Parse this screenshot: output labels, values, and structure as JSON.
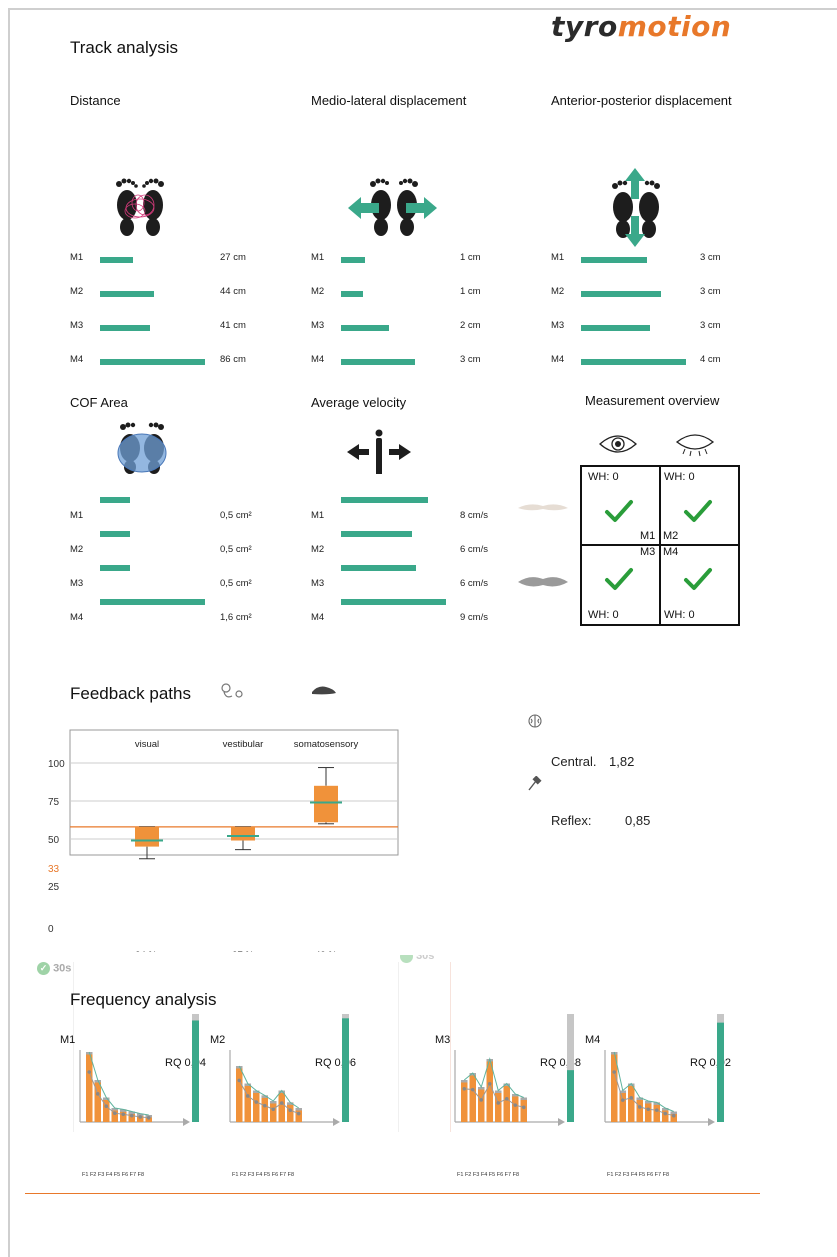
{
  "brand": {
    "part1": "tyro",
    "part2": "motion",
    "accent": "#e8782a",
    "teal": "#3aa88a"
  },
  "title": "Track analysis",
  "metrics": {
    "distance": {
      "title": "Distance",
      "rows": [
        {
          "label": "M1",
          "value": "27 cm",
          "fraction": 0.31
        },
        {
          "label": "M2",
          "value": "44 cm",
          "fraction": 0.51
        },
        {
          "label": "M3",
          "value": "41 cm",
          "fraction": 0.48
        },
        {
          "label": "M4",
          "value": "86 cm",
          "fraction": 1.0
        }
      ]
    },
    "ml": {
      "title": "Medio-lateral displacement",
      "rows": [
        {
          "label": "M1",
          "value": "1 cm",
          "fraction": 0.33
        },
        {
          "label": "M2",
          "value": "1 cm",
          "fraction": 0.3
        },
        {
          "label": "M3",
          "value": "2 cm",
          "fraction": 0.65
        },
        {
          "label": "M4",
          "value": "3 cm",
          "fraction": 1.0
        }
      ]
    },
    "ap": {
      "title": "Anterior-posterior displacement",
      "rows": [
        {
          "label": "M1",
          "value": "3 cm",
          "fraction": 0.63
        },
        {
          "label": "M2",
          "value": "3 cm",
          "fraction": 0.76
        },
        {
          "label": "M3",
          "value": "3 cm",
          "fraction": 0.66
        },
        {
          "label": "M4",
          "value": "4 cm",
          "fraction": 1.0
        }
      ]
    },
    "cof": {
      "title": "COF Area",
      "rows": [
        {
          "label": "M1",
          "value": "0,5 cm²",
          "fraction": 0.29
        },
        {
          "label": "M2",
          "value": "0,5 cm²",
          "fraction": 0.29
        },
        {
          "label": "M3",
          "value": "0,5 cm²",
          "fraction": 0.29
        },
        {
          "label": "M4",
          "value": "1,6 cm²",
          "fraction": 1.0
        }
      ]
    },
    "vel": {
      "title": "Average velocity",
      "rows": [
        {
          "label": "M1",
          "value": "8 cm/s",
          "fraction": 0.83
        },
        {
          "label": "M2",
          "value": "6 cm/s",
          "fraction": 0.68
        },
        {
          "label": "M3",
          "value": "6 cm/s",
          "fraction": 0.71
        },
        {
          "label": "M4",
          "value": "9 cm/s",
          "fraction": 1.0
        }
      ]
    }
  },
  "overview": {
    "title": "Measurement overview",
    "cells": [
      {
        "m": "M1",
        "wh": "WH: 0"
      },
      {
        "m": "M2",
        "wh": "WH: 0"
      },
      {
        "m": "M3",
        "wh": "WH: 0"
      },
      {
        "m": "M4",
        "wh": "WH: 0"
      }
    ]
  },
  "feedback": {
    "title": "Feedback paths",
    "categories": [
      "visual",
      "vestibular",
      "somatosensory"
    ],
    "percents": [
      "24 %",
      "27 %",
      "49 %"
    ],
    "yticks": [
      "100",
      "75",
      "50",
      "25",
      "0"
    ],
    "reference": "33",
    "central_label": "Central.",
    "central_value": "1,82",
    "reflex_label": "Reflex:",
    "reflex_value": "0,85"
  },
  "chart_data": {
    "type": "box",
    "categories": [
      "visual",
      "vestibular",
      "somatosensory"
    ],
    "ylim": [
      0,
      100
    ],
    "reference_line": 33,
    "boxes": [
      {
        "min": 37,
        "q1": 45,
        "median": 49,
        "q3": 58,
        "max": 58
      },
      {
        "min": 43,
        "q1": 49,
        "median": 52,
        "q3": 58,
        "max": 58
      },
      {
        "min": 60,
        "q1": 61,
        "median": 74,
        "q3": 85,
        "max": 97
      }
    ]
  },
  "frequency": {
    "title": "Frequency analysis",
    "axis_label": "F1 F2 F3 F4 F5 F6 F7 F8",
    "panels": [
      {
        "label": "M1",
        "rq": "RQ 0,94",
        "rq_value": 0.94,
        "bars": [
          1.0,
          0.6,
          0.35,
          0.2,
          0.18,
          0.15,
          0.12,
          0.1
        ]
      },
      {
        "label": "M2",
        "rq": "RQ 0,96",
        "rq_value": 0.96,
        "bars": [
          0.8,
          0.55,
          0.45,
          0.38,
          0.3,
          0.45,
          0.28,
          0.2
        ]
      },
      {
        "label": "M3",
        "rq": "RQ 0,48",
        "rq_value": 0.48,
        "bars": [
          0.6,
          0.7,
          0.5,
          0.9,
          0.45,
          0.55,
          0.4,
          0.35
        ]
      },
      {
        "label": "M4",
        "rq": "RQ 0,92",
        "rq_value": 0.92,
        "bars": [
          1.0,
          0.45,
          0.55,
          0.35,
          0.3,
          0.28,
          0.2,
          0.15
        ]
      }
    ]
  },
  "badges": [
    "30s",
    "30s"
  ]
}
